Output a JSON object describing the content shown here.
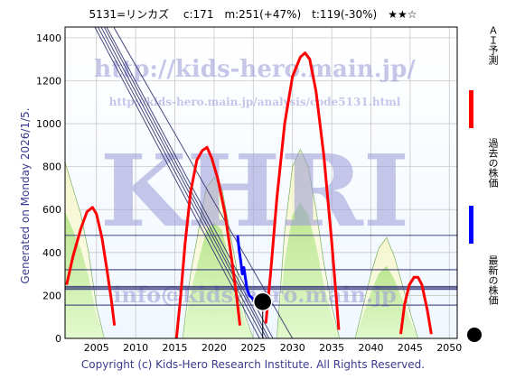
{
  "header": {
    "title": "5131=リンカズ　 c:171　m:251(+47%)　t:119(-30%)　★★☆"
  },
  "side": {
    "generated": "Generated on Monday 2026/1/5."
  },
  "footer": {
    "copyright": "Copyright (c) Kids-Hero Research Institute. All Rights Reserved."
  },
  "legend": {
    "ai_forecast": "ＡＩ予測",
    "past_price": "過去の株価",
    "latest_price": "最新の株価",
    "colors": {
      "ai": "#ff0000",
      "past": "#0000ff",
      "latest": "#000000"
    }
  },
  "watermarks": {
    "url_big": "http://kids-hero.main.jp/",
    "url_small": "http://kids-hero.main.jp/analysis/code5131.html",
    "logo": "KHRI",
    "email": "info@kids-hero.main.jp"
  },
  "chart_data": {
    "type": "line",
    "xlim": [
      2001,
      2051
    ],
    "ylim": [
      0,
      1450
    ],
    "x_ticks": [
      2005,
      2010,
      2015,
      2020,
      2025,
      2030,
      2035,
      2040,
      2045,
      2050
    ],
    "y_ticks": [
      0,
      200,
      400,
      600,
      800,
      1000,
      1200,
      1400
    ],
    "grid": true,
    "horizontal_levels": [
      480,
      320,
      240,
      230,
      155
    ],
    "series": [
      {
        "name": "ＡＩ予測",
        "color": "#ff0000",
        "segments": [
          [
            [
              2001.2,
              250
            ],
            [
              2002,
              380
            ],
            [
              2003,
              510
            ],
            [
              2003.8,
              590
            ],
            [
              2004.5,
              610
            ],
            [
              2005,
              580
            ],
            [
              2005.7,
              470
            ],
            [
              2006.3,
              330
            ],
            [
              2006.9,
              180
            ],
            [
              2007.3,
              60
            ]
          ],
          [
            [
              2015.2,
              0
            ],
            [
              2015.7,
              180
            ],
            [
              2016.3,
              440
            ],
            [
              2017,
              680
            ],
            [
              2017.8,
              830
            ],
            [
              2018.5,
              875
            ],
            [
              2019.1,
              890
            ],
            [
              2019.7,
              840
            ],
            [
              2020.5,
              740
            ],
            [
              2021.4,
              580
            ],
            [
              2022.2,
              380
            ],
            [
              2022.9,
              190
            ],
            [
              2023.3,
              60
            ]
          ],
          [
            [
              2026.6,
              70
            ],
            [
              2027.2,
              300
            ],
            [
              2028,
              650
            ],
            [
              2029,
              1000
            ],
            [
              2030,
              1220
            ],
            [
              2031,
              1310
            ],
            [
              2031.6,
              1330
            ],
            [
              2032.2,
              1300
            ],
            [
              2033,
              1150
            ],
            [
              2034,
              850
            ],
            [
              2035,
              450
            ],
            [
              2035.6,
              180
            ],
            [
              2035.9,
              40
            ]
          ],
          [
            [
              2043.8,
              20
            ],
            [
              2044.3,
              160
            ],
            [
              2044.9,
              250
            ],
            [
              2045.5,
              285
            ],
            [
              2046,
              285
            ],
            [
              2046.5,
              250
            ],
            [
              2047.2,
              130
            ],
            [
              2047.7,
              20
            ]
          ]
        ]
      },
      {
        "name": "過去の株価",
        "color": "#0000ff",
        "points": [
          [
            2023.0,
            480
          ],
          [
            2023.2,
            410
          ],
          [
            2023.4,
            360
          ],
          [
            2023.6,
            300
          ],
          [
            2023.8,
            330
          ],
          [
            2024.0,
            280
          ],
          [
            2024.2,
            230
          ],
          [
            2024.5,
            200
          ],
          [
            2024.8,
            190
          ],
          [
            2025.0,
            180
          ]
        ]
      },
      {
        "name": "最新の株価",
        "color": "#000000",
        "points": [
          [
            2026.2,
            171
          ]
        ]
      }
    ],
    "background_bands": [
      [
        [
          2001,
          820
        ],
        [
          2002,
          700
        ],
        [
          2003,
          580
        ],
        [
          2004,
          400
        ],
        [
          2005,
          150
        ],
        [
          2006,
          0
        ]
      ],
      [
        [
          2016,
          0
        ],
        [
          2017,
          300
        ],
        [
          2018,
          500
        ],
        [
          2019,
          700
        ],
        [
          2020,
          750
        ],
        [
          2021,
          700
        ],
        [
          2022,
          500
        ],
        [
          2023,
          300
        ],
        [
          2024,
          100
        ],
        [
          2025,
          0
        ]
      ],
      [
        [
          2028,
          0
        ],
        [
          2029,
          500
        ],
        [
          2030,
          800
        ],
        [
          2031,
          880
        ],
        [
          2032,
          800
        ],
        [
          2033,
          600
        ],
        [
          2034,
          350
        ],
        [
          2035,
          150
        ],
        [
          2036,
          0
        ]
      ],
      [
        [
          2038,
          0
        ],
        [
          2039,
          150
        ],
        [
          2040,
          300
        ],
        [
          2041,
          420
        ],
        [
          2042,
          470
        ],
        [
          2043,
          380
        ],
        [
          2044,
          250
        ],
        [
          2045,
          120
        ],
        [
          2046,
          0
        ]
      ]
    ],
    "trend_lines": [
      [
        [
          2006.3,
          1450
        ],
        [
          2027.5,
          0
        ]
      ],
      [
        [
          2006.0,
          1450
        ],
        [
          2027.0,
          0
        ]
      ],
      [
        [
          2005.6,
          1450
        ],
        [
          2026.7,
          0
        ]
      ],
      [
        [
          2005.2,
          1450
        ],
        [
          2026.3,
          0
        ]
      ],
      [
        [
          2004.8,
          1450
        ],
        [
          2025.8,
          0
        ]
      ],
      [
        [
          2007.2,
          1450
        ],
        [
          2030.0,
          0
        ]
      ]
    ]
  }
}
